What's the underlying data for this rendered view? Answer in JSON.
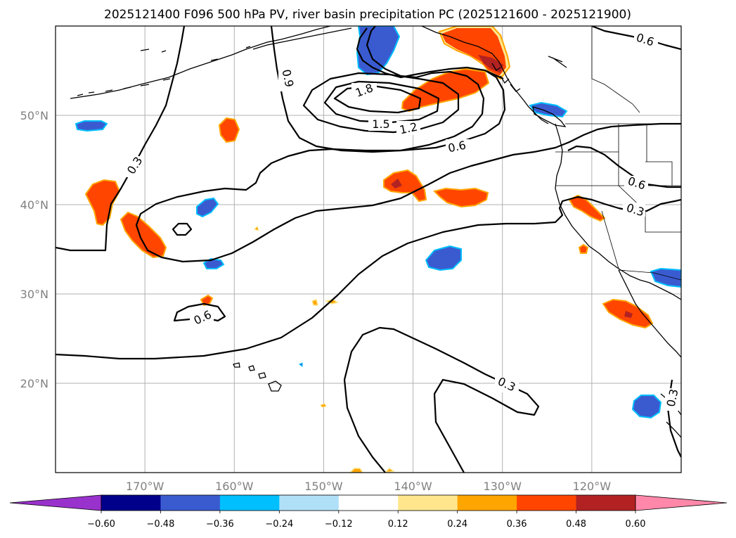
{
  "title": "2025121400 F096 500 hPa PV, river basin precipitation PC (2025121600 - 2025121900)",
  "map": {
    "projection": "PlateCarree",
    "lon_range": [
      -180,
      -110
    ],
    "lat_range": [
      10,
      60
    ],
    "lat_ticks": [
      {
        "value": 20,
        "label": "20°N"
      },
      {
        "value": 30,
        "label": "30°N"
      },
      {
        "value": 40,
        "label": "40°N"
      },
      {
        "value": 50,
        "label": "50°N"
      }
    ],
    "lon_ticks": [
      {
        "value": -170,
        "label": "170°W"
      },
      {
        "value": -160,
        "label": "160°W"
      },
      {
        "value": -150,
        "label": "150°W"
      },
      {
        "value": -140,
        "label": "140°W"
      },
      {
        "value": -130,
        "label": "130°W"
      },
      {
        "value": -120,
        "label": "120°W"
      }
    ],
    "gridlines": true,
    "contour_labels": [
      "1.8",
      "1.5",
      "1.2",
      "0.9",
      "0.6",
      "0.6",
      "0.6",
      "0.6",
      "0.3",
      "0.3",
      "0.3",
      "0.3"
    ]
  },
  "colorbar": {
    "orientation": "horizontal",
    "extend": "both",
    "under_color": "#9932cc",
    "over_color": "#ff88aa",
    "colors": [
      "#00008b",
      "#3a5bd0",
      "#00bfff",
      "#b0e0f8",
      "#ffffff",
      "#ffe68c",
      "#ffa500",
      "#ff4500",
      "#b22222"
    ],
    "tick_labels": [
      "−0.60",
      "−0.48",
      "−0.36",
      "−0.24",
      "−0.12",
      "0.12",
      "0.24",
      "0.36",
      "0.48",
      "0.60"
    ]
  }
}
